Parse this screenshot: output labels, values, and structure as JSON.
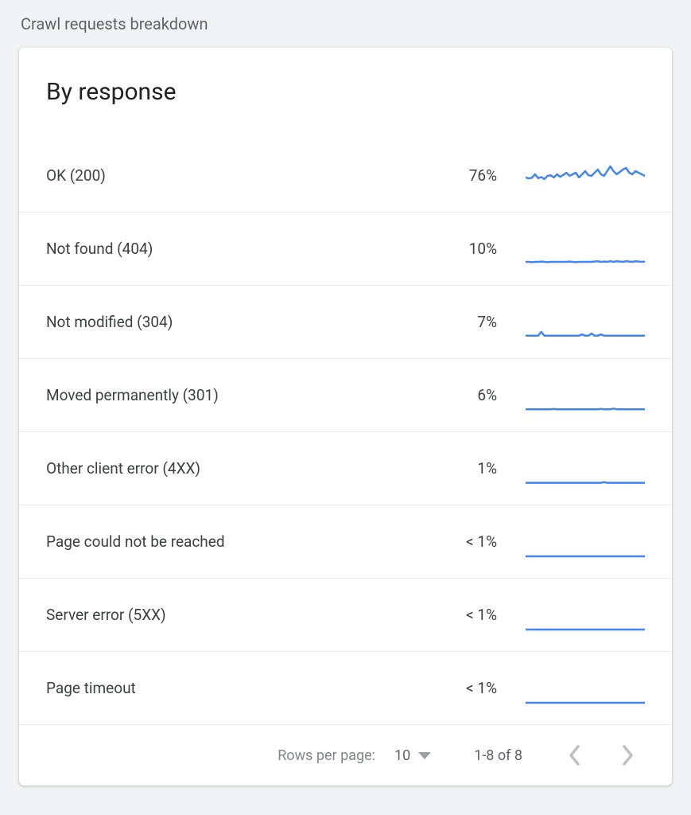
{
  "page_label": "Crawl requests breakdown",
  "card": {
    "title": "By response",
    "spark": {
      "width": 150,
      "height": 40,
      "stroke": "#4285f4",
      "stroke_width": 2.5,
      "fill": "none"
    },
    "rows": [
      {
        "label": "OK (200)",
        "value": "76%",
        "sparkline_points": [
          55,
          58,
          56,
          45,
          57,
          54,
          60,
          50,
          48,
          55,
          45,
          53,
          47,
          40,
          50,
          45,
          40,
          55,
          45,
          35,
          48,
          50,
          40,
          30,
          45,
          50,
          35,
          20,
          35,
          45,
          38,
          30,
          25,
          40,
          45,
          35,
          40,
          45,
          50
        ]
      },
      {
        "label": "Not found (404)",
        "value": "10%",
        "sparkline_points": [
          90,
          90,
          91,
          90,
          90,
          89,
          90,
          91,
          90,
          90,
          90,
          90,
          90,
          90,
          89,
          90,
          91,
          90,
          90,
          90,
          90,
          90,
          89,
          88,
          90,
          89,
          90,
          88,
          90,
          88,
          89,
          90,
          88,
          89,
          90,
          88,
          89,
          90,
          89
        ]
      },
      {
        "label": "Not modified (304)",
        "value": "7%",
        "sparkline_points": [
          92,
          92,
          92,
          92,
          92,
          80,
          92,
          92,
          92,
          92,
          92,
          92,
          92,
          92,
          92,
          92,
          92,
          92,
          88,
          92,
          92,
          85,
          92,
          92,
          88,
          92,
          92,
          92,
          92,
          92,
          92,
          92,
          92,
          92,
          92,
          92,
          92,
          92,
          92
        ]
      },
      {
        "label": "Moved permanently (301)",
        "value": "6%",
        "sparkline_points": [
          93,
          93,
          93,
          93,
          93,
          93,
          93,
          93,
          93,
          92,
          93,
          93,
          93,
          93,
          93,
          93,
          93,
          93,
          93,
          93,
          93,
          93,
          93,
          93,
          92,
          93,
          93,
          93,
          91,
          93,
          93,
          93,
          93,
          93,
          93,
          93,
          93,
          93,
          93
        ]
      },
      {
        "label": "Other client error (4XX)",
        "value": "1%",
        "sparkline_points": [
          94,
          94,
          94,
          94,
          94,
          94,
          94,
          94,
          94,
          94,
          94,
          94,
          94,
          94,
          94,
          94,
          94,
          94,
          94,
          94,
          94,
          94,
          94,
          94,
          94,
          92,
          94,
          94,
          94,
          94,
          94,
          94,
          94,
          94,
          94,
          94,
          94,
          94,
          94
        ]
      },
      {
        "label": "Page could not be reached",
        "value": "< 1%",
        "sparkline_points": [
          95,
          95,
          95,
          95,
          95,
          95,
          95,
          95,
          95,
          95,
          95,
          95,
          95,
          95,
          95,
          95,
          95,
          95,
          95,
          95,
          95,
          95,
          95,
          95,
          95,
          95,
          95,
          95,
          95,
          95,
          95,
          95,
          95,
          95,
          95,
          95,
          95,
          95,
          95
        ]
      },
      {
        "label": "Server error (5XX)",
        "value": "< 1%",
        "sparkline_points": [
          95,
          95,
          95,
          95,
          95,
          95,
          95,
          95,
          95,
          95,
          95,
          95,
          95,
          95,
          95,
          95,
          95,
          95,
          95,
          95,
          95,
          95,
          95,
          95,
          95,
          95,
          95,
          95,
          95,
          95,
          95,
          95,
          95,
          95,
          95,
          95,
          95,
          95,
          95
        ]
      },
      {
        "label": "Page timeout",
        "value": "< 1%",
        "sparkline_points": [
          95,
          95,
          95,
          95,
          95,
          95,
          95,
          95,
          95,
          95,
          95,
          95,
          95,
          95,
          95,
          95,
          95,
          95,
          95,
          95,
          95,
          95,
          95,
          95,
          95,
          95,
          95,
          95,
          95,
          95,
          95,
          95,
          95,
          95,
          95,
          95,
          95,
          95,
          95
        ]
      }
    ],
    "footer": {
      "rows_per_page_label": "Rows per page:",
      "rows_per_page_value": "10",
      "range_label": "1-8 of 8"
    }
  }
}
